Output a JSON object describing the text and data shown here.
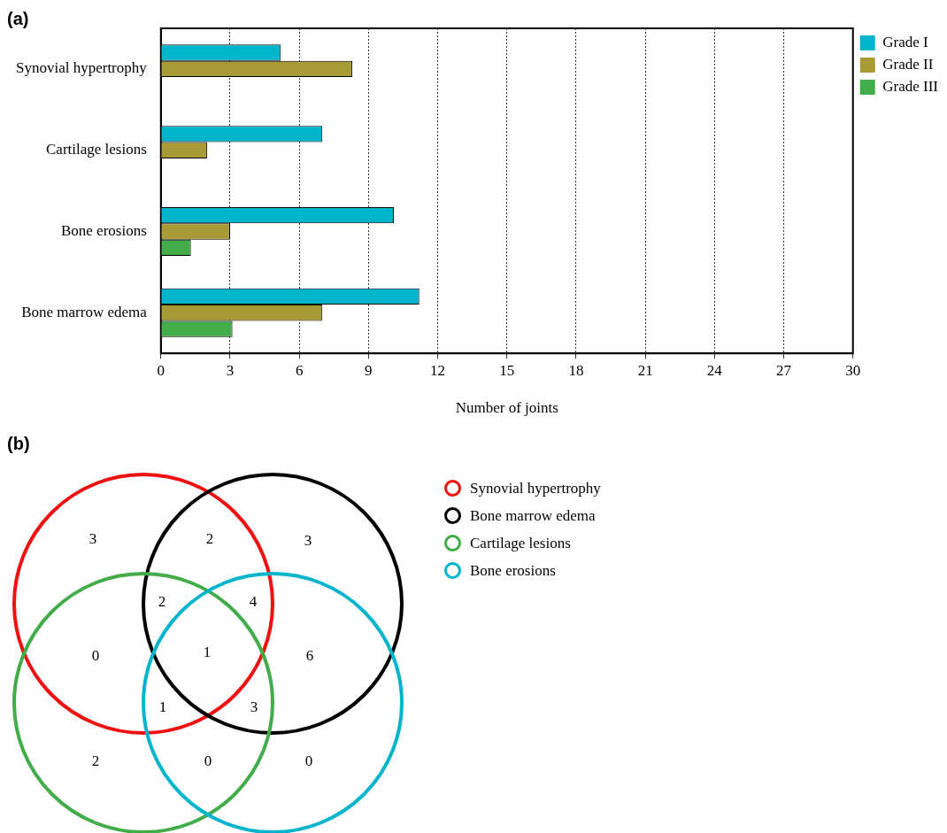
{
  "chart_data": [
    {
      "type": "bar",
      "title": "(a)",
      "orientation": "horizontal",
      "categories": [
        "Synovial hypertrophy",
        "Cartilage lesions",
        "Bone erosions",
        "Bone marrow edema"
      ],
      "series": [
        {
          "name": "Grade I",
          "color": "#00b4cc",
          "values": [
            5.2,
            7,
            10.1,
            11.2
          ]
        },
        {
          "name": "Grade II",
          "color": "#a89a34",
          "values": [
            8.3,
            2,
            3,
            7
          ]
        },
        {
          "name": "Grade III",
          "color": "#42ac4a",
          "values": [
            null,
            null,
            1.3,
            3.1
          ]
        }
      ],
      "xlabel": "Number of joints",
      "xlim": [
        0,
        30
      ],
      "xticks": [
        0,
        3,
        6,
        9,
        12,
        15,
        18,
        21,
        24,
        27,
        30
      ],
      "grid": "x",
      "legend": "top right"
    },
    {
      "type": "other",
      "title": "(b)",
      "categories": [
        "Synovial hypertrophy",
        "Bone marrow edema",
        "Cartilage lesions",
        "Bone erosions"
      ],
      "colors": [
        "#f01010",
        "#000000",
        "#42ac4a",
        "#00b4cc"
      ],
      "annotations": [
        "3",
        "2",
        "3",
        "2",
        "4",
        "0",
        "1",
        "6",
        "1",
        "3",
        "2",
        "0",
        "0"
      ]
    }
  ]
}
